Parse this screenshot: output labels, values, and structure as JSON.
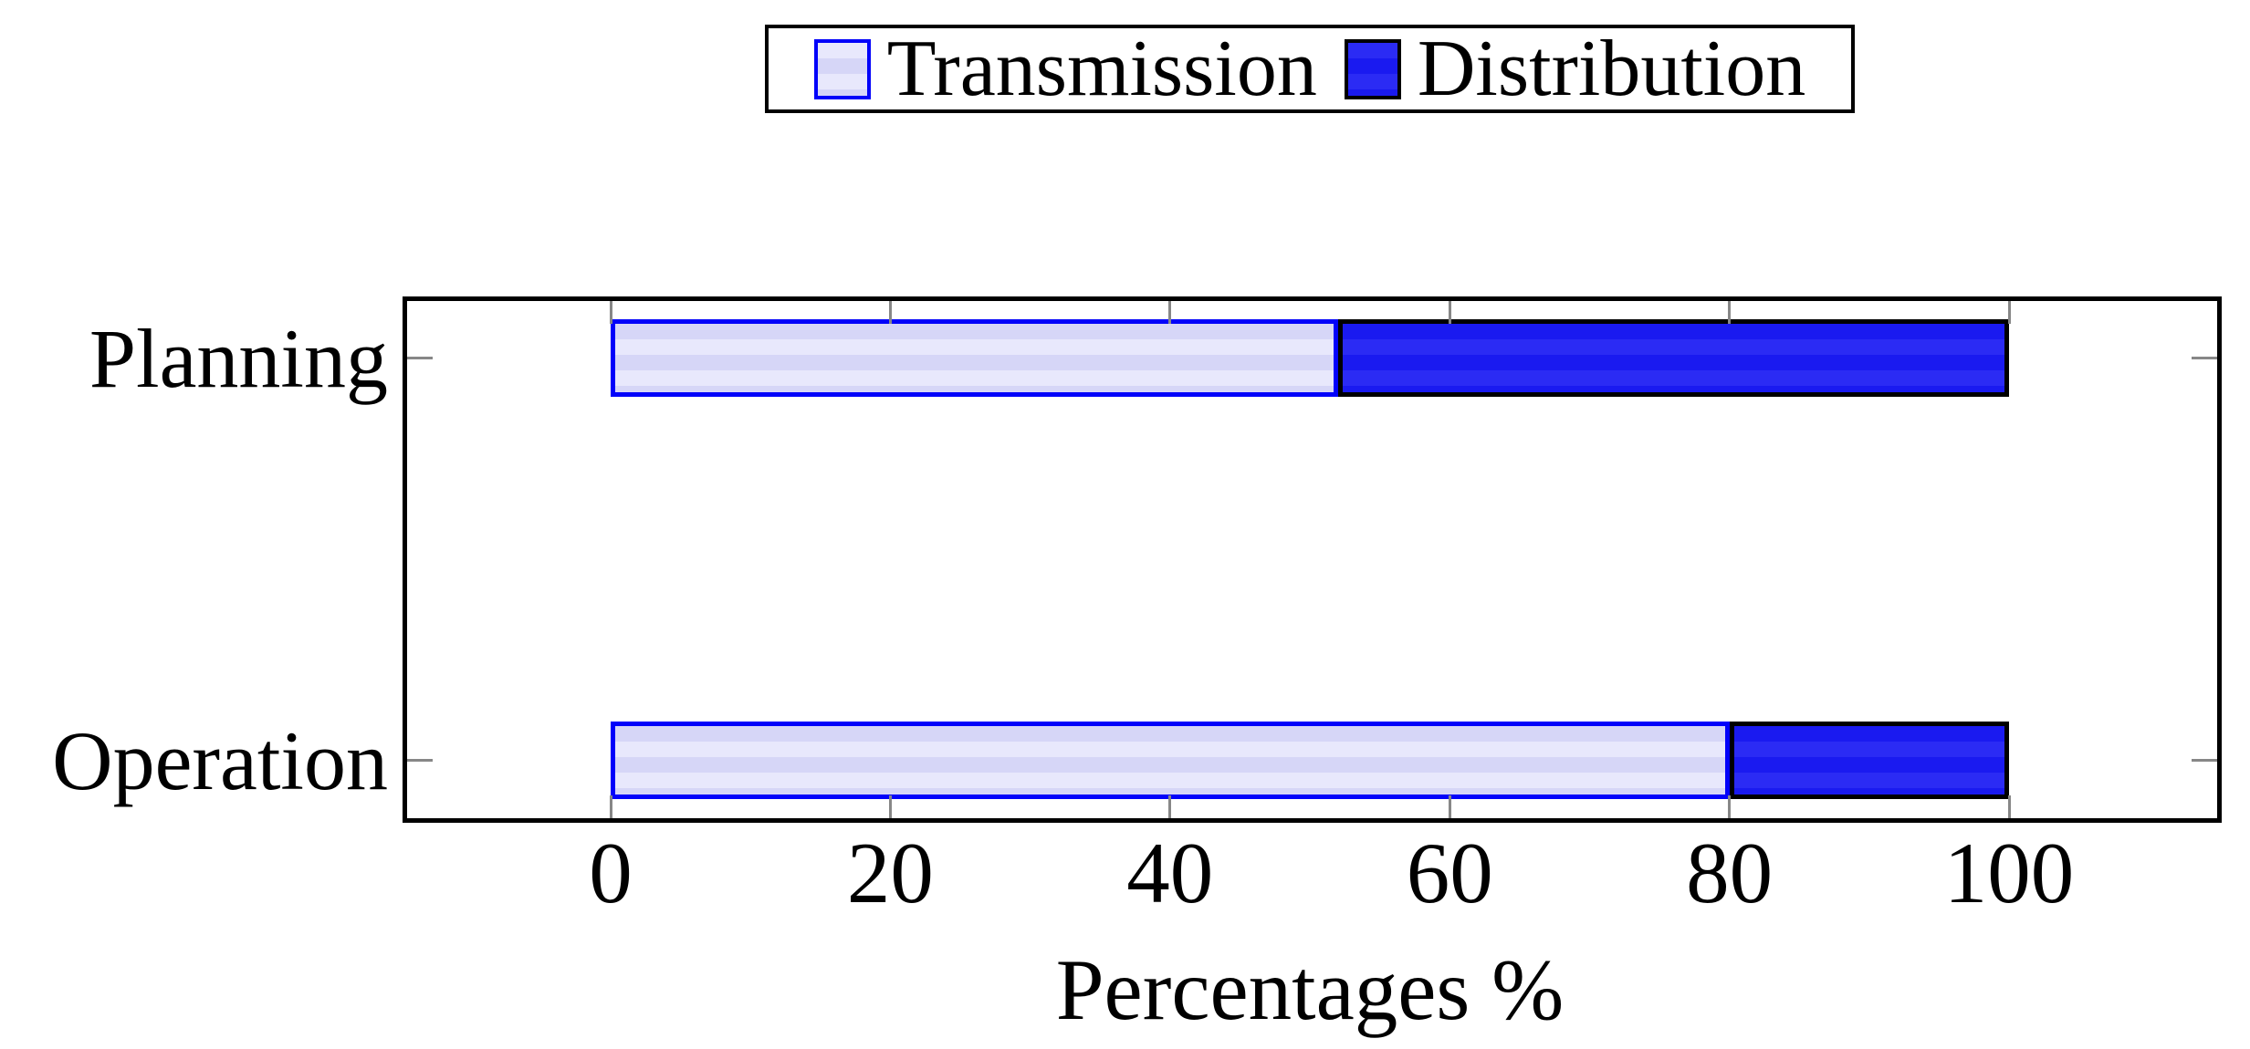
{
  "chart_data": {
    "type": "bar",
    "orientation": "horizontal",
    "stacked": true,
    "title": "",
    "xlabel": "Percentages %",
    "ylabel": "",
    "categories": [
      "Planning",
      "Operation"
    ],
    "series": [
      {
        "name": "Transmission",
        "values": [
          52,
          80
        ],
        "fill": "#d6d6f7",
        "fill_alt": "#e8e8fc",
        "border": "#0202fa"
      },
      {
        "name": "Distribution",
        "values": [
          48,
          20
        ],
        "fill": "#1a1af0",
        "fill_alt": "#2b2bf4",
        "border": "#000000"
      }
    ],
    "x_ticks": [
      0,
      20,
      40,
      60,
      80,
      100
    ],
    "xlim": [
      -15,
      115
    ],
    "grid": false,
    "legend_position": "top-center",
    "legend_labels": [
      "Transmission",
      "Distribution"
    ],
    "axis_color": "#000000",
    "tick_color": "#878787",
    "background_color": "#ffffff"
  }
}
